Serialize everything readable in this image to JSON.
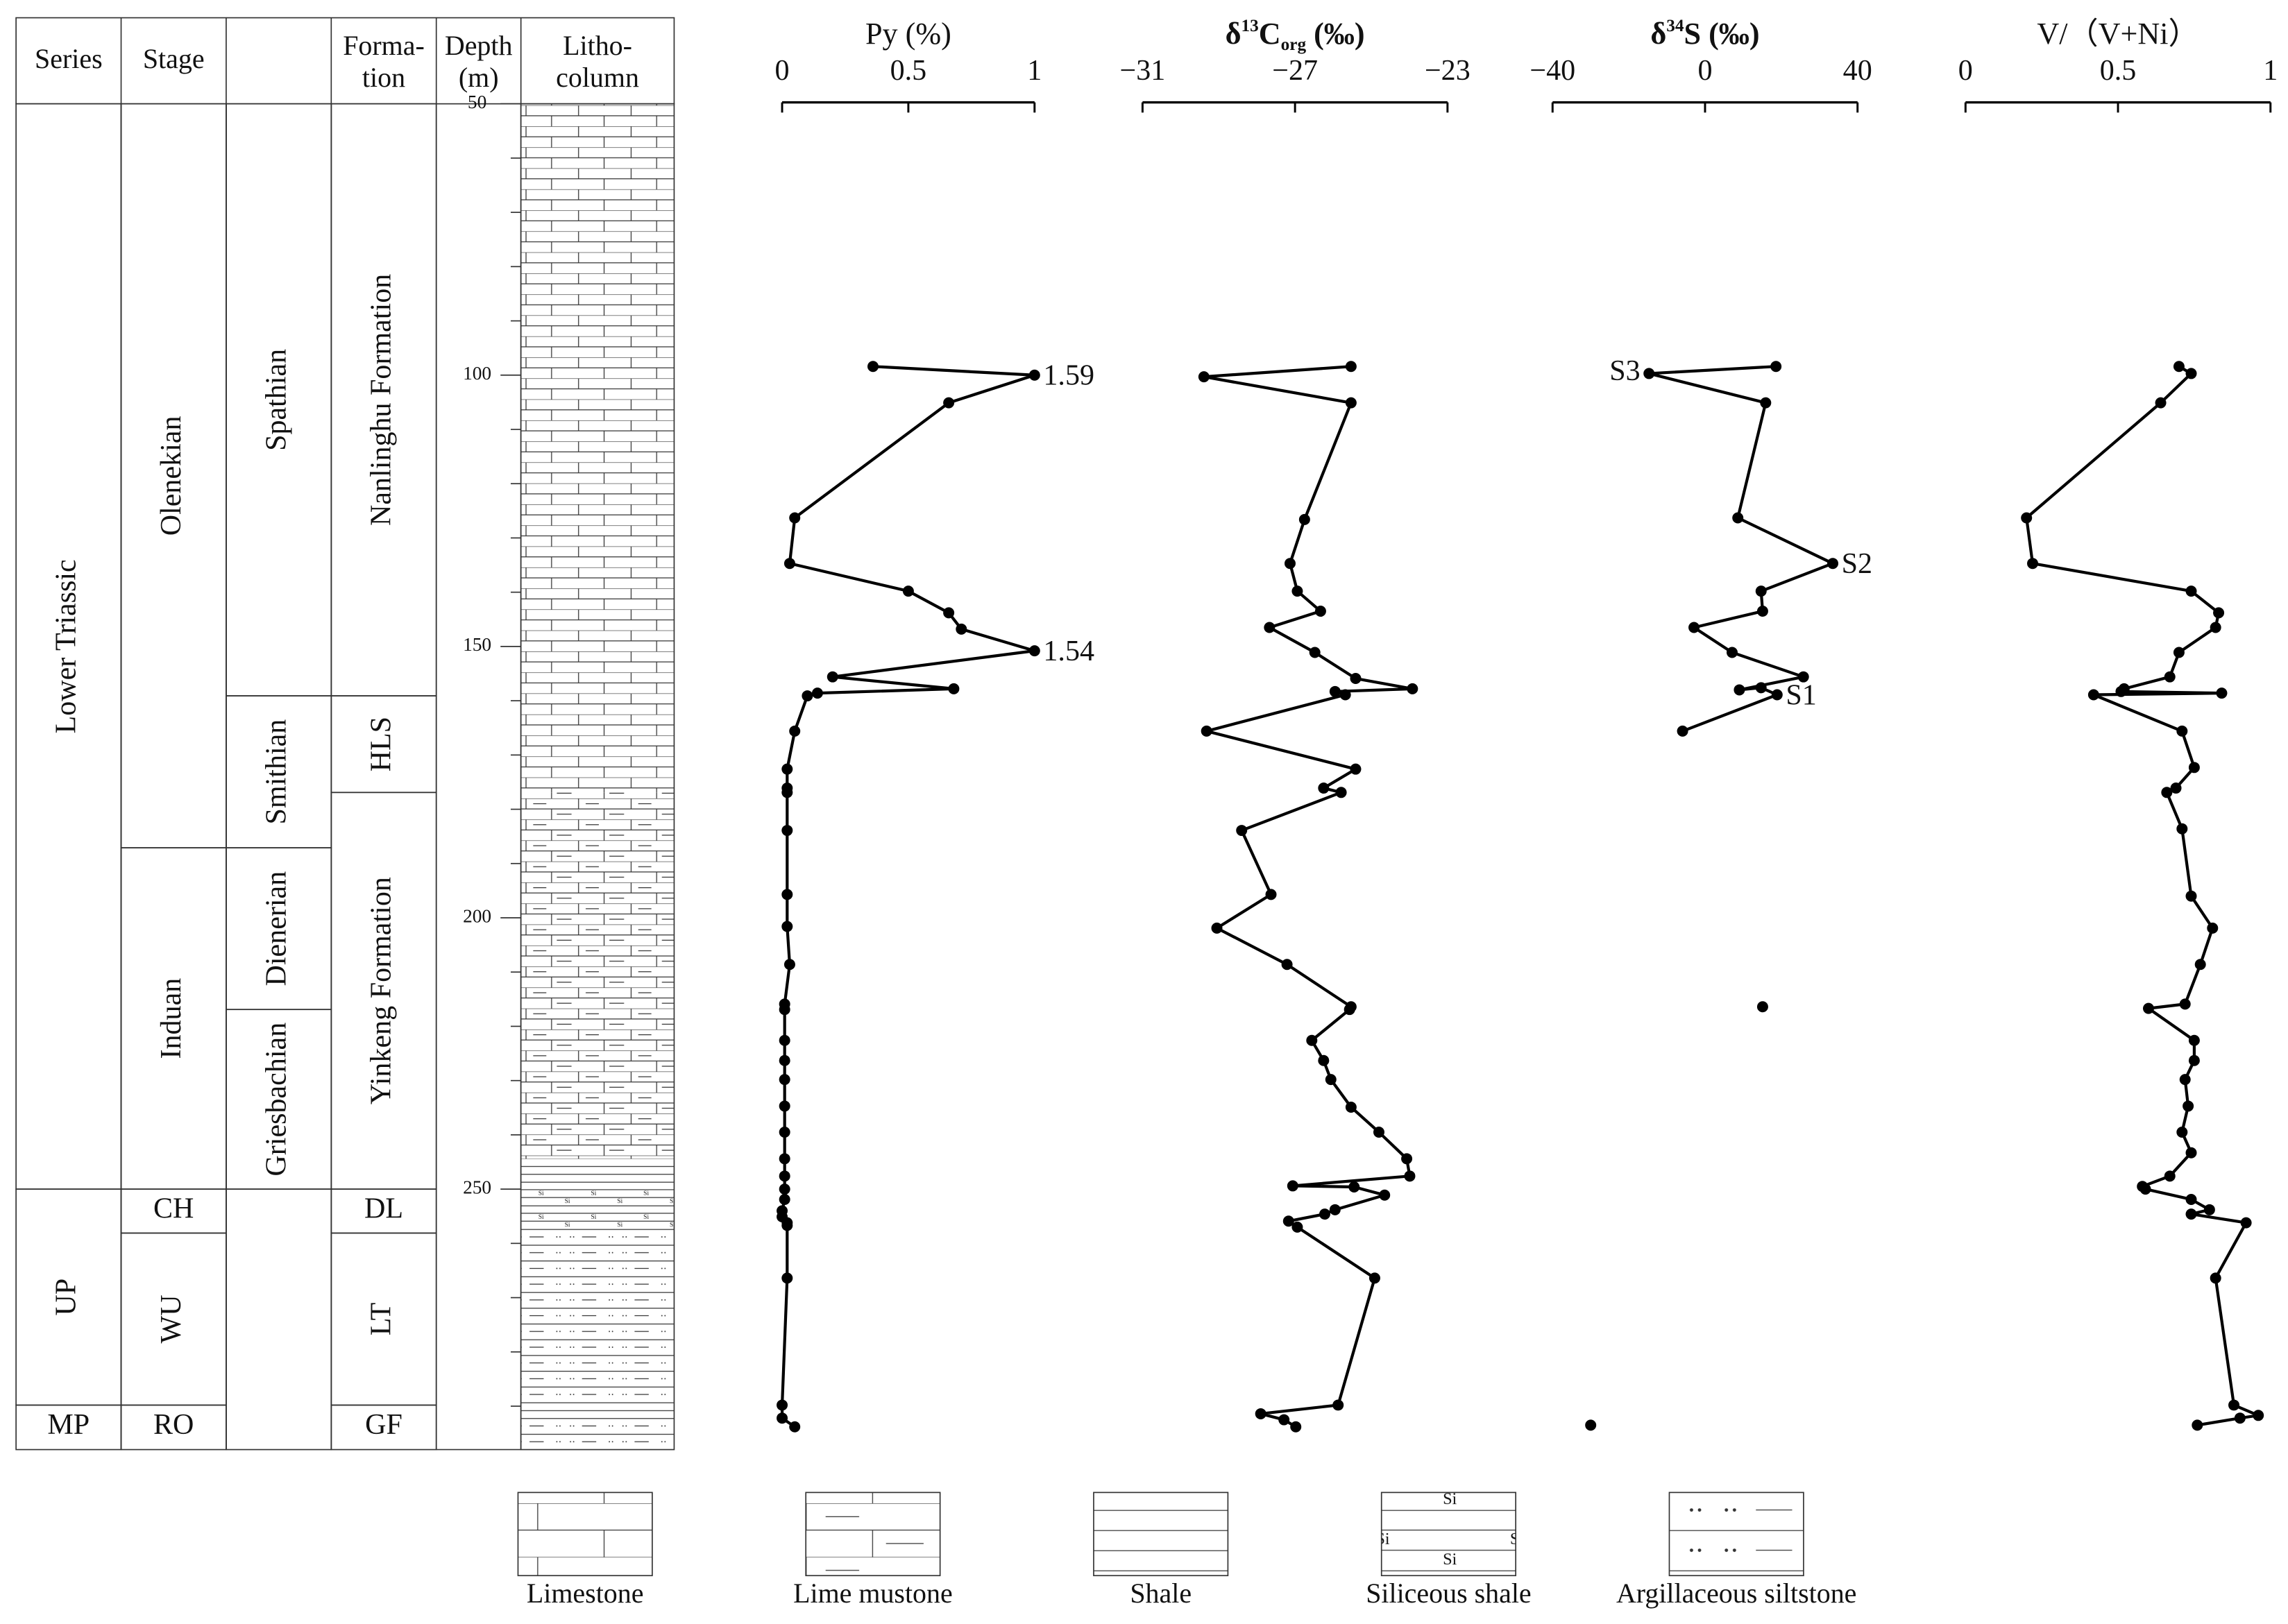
{
  "strat_column": {
    "headers": {
      "series": "Series",
      "stage": "Stage",
      "formation": [
        "Forma-",
        "tion"
      ],
      "depth": [
        "Depth",
        "(m)"
      ],
      "litho": [
        "Litho-",
        "column"
      ]
    },
    "depth_axis": {
      "ylim": [
        50,
        298
      ],
      "yticks": [
        50,
        100,
        150,
        200,
        250
      ],
      "minor_ticks": [
        60,
        70,
        80,
        90,
        110,
        120,
        130,
        140,
        160,
        170,
        180,
        190,
        210,
        220,
        230,
        240,
        260,
        270,
        280,
        290
      ]
    },
    "units": {
      "series": [
        {
          "label": "Lower Triassic",
          "to": 250
        },
        {
          "label": "UP",
          "to": 289.8
        },
        {
          "label": "MP",
          "to": 298
        }
      ],
      "stage": [
        {
          "label": "Olenekian",
          "to": 187.1
        },
        {
          "label": "Induan",
          "to": 250
        },
        {
          "label": "CH",
          "to": 258.1
        },
        {
          "label": "WU",
          "to": 289.8
        },
        {
          "label": "RO",
          "to": 298
        }
      ],
      "substage": [
        {
          "label": "Spathian",
          "to": 159.1
        },
        {
          "label": "Smithian",
          "to": 187.1
        },
        {
          "label": "Dienerian",
          "to": 216.9
        },
        {
          "label": "Griesbachian",
          "to": 250
        },
        {
          "label": null,
          "to": 298
        }
      ],
      "formation": [
        {
          "label": "Nanlinghu Formation",
          "to": 159.1
        },
        {
          "label": "HLS",
          "to": 176.9
        },
        {
          "label": "Yinkeng Formation",
          "to": 250
        },
        {
          "label": "DL",
          "to": 258.1
        },
        {
          "label": "LT",
          "to": 289.8
        },
        {
          "label": "GF",
          "to": 298
        }
      ]
    },
    "lithology": [
      {
        "legend": 0,
        "to": 176.9
      },
      {
        "legend": 1,
        "to": 244.4
      },
      {
        "legend": 2,
        "to": 250
      },
      {
        "legend": 3,
        "to": 258.1
      },
      {
        "legend": 4,
        "to": 290
      },
      {
        "legend": 2,
        "to": 292.5
      },
      {
        "legend": 4,
        "to": 298
      }
    ]
  },
  "si_symbol": "Si",
  "legend": [
    "Limestone",
    "Lime mustone",
    "Shale",
    "Siliceous shale",
    "Argillaceous siltstone"
  ],
  "chart_data": [
    {
      "type": "line",
      "title": "Py (%)",
      "xlim": [
        0,
        1
      ],
      "xticks": [
        0,
        0.5,
        1
      ],
      "color": "#000000",
      "markers": true,
      "y": [
        98.4,
        100,
        105.1,
        126.3,
        134.7,
        139.8,
        143.8,
        146.8,
        150.8,
        155.6,
        157.8,
        158.6,
        159.1,
        165.6,
        172.6,
        176.1,
        176.9,
        183.9,
        195.7,
        201.6,
        208.6,
        215.9,
        216.9,
        222.6,
        226.3,
        229.8,
        234.7,
        239.5,
        244.4,
        247.6,
        250,
        251.9,
        254,
        255.1,
        256.2,
        256.7,
        266.4,
        289.8,
        292.2,
        293.8
      ],
      "values": [
        0.36,
        1,
        0.66,
        0.05,
        0.03,
        0.5,
        0.66,
        0.71,
        1,
        0.2,
        0.68,
        0.14,
        0.1,
        0.05,
        0.02,
        0.02,
        0.02,
        0.02,
        0.02,
        0.02,
        0.03,
        0.01,
        0.01,
        0.01,
        0.01,
        0.01,
        0.01,
        0.01,
        0.01,
        0.01,
        0.01,
        0.01,
        0,
        0,
        0.02,
        0.02,
        0.02,
        0,
        0,
        0.05
      ],
      "annotations": [
        {
          "text": "1.59",
          "index": 1
        },
        {
          "text": "1.54",
          "index": 8
        }
      ]
    },
    {
      "type": "line",
      "title": {
        "prefix": "δ",
        "sup": "13",
        "main": "C",
        "sub": "org",
        "suffix": " (‰)"
      },
      "xlim": [
        -31,
        -23
      ],
      "xticks": [
        {
          "value": -31,
          "label": "−31"
        },
        {
          "value": -27,
          "label": "−27"
        },
        {
          "value": -23,
          "label": "−23"
        }
      ],
      "color": "#000000",
      "markers": true,
      "y": [
        98.4,
        100.3,
        105.1,
        126.6,
        134.7,
        139.8,
        143.5,
        146.5,
        151.1,
        155.9,
        157.8,
        158.3,
        158.9,
        165.6,
        172.6,
        176.1,
        176.9,
        183.9,
        195.7,
        201.9,
        208.6,
        216.4,
        216.9,
        222.6,
        226.3,
        229.8,
        234.9,
        239.5,
        244.4,
        247.6,
        249.4,
        249.6,
        251.1,
        253.8,
        254.6,
        255.9,
        257,
        266.4,
        289.8,
        291.4,
        292.5,
        293.8
      ],
      "values": [
        -25.53,
        -29.39,
        -25.53,
        -26.75,
        -27.13,
        -26.94,
        -26.33,
        -27.67,
        -26.48,
        -25.41,
        -23.92,
        -25.95,
        -25.68,
        -29.32,
        -25.41,
        -26.25,
        -25.79,
        -28.4,
        -27.63,
        -29.05,
        -27.21,
        -25.53,
        -25.57,
        -26.56,
        -26.25,
        -26.06,
        -25.53,
        -24.8,
        -24.07,
        -23.99,
        -27.06,
        -25.45,
        -24.65,
        -25.95,
        -26.22,
        -27.17,
        -26.94,
        -24.91,
        -25.87,
        -27.9,
        -27.29,
        -26.98
      ]
    },
    {
      "type": "line",
      "title": {
        "prefix": "δ",
        "sup": "34",
        "main": "S (‰)"
      },
      "xlim": [
        -40,
        40
      ],
      "xticks": [
        {
          "value": -40,
          "label": "−40"
        },
        0,
        40
      ],
      "color": "#000000",
      "markers": true,
      "y": [
        98.4,
        99.7,
        105.1,
        126.3,
        134.7,
        139.8,
        143.5,
        146.5,
        151.1,
        155.6,
        158.0,
        157.6,
        158.9,
        165.6,
        null,
        216.4,
        null,
        293.5
      ],
      "values": [
        18.6,
        -14.7,
        15.9,
        8.6,
        33.5,
        14.7,
        15.1,
        -2.9,
        7.1,
        25.8,
        9.0,
        14.7,
        18.9,
        -5.9,
        null,
        15.1,
        null,
        -30
      ],
      "annotations": [
        {
          "text": "S3",
          "index": 1
        },
        {
          "text": "S2",
          "index": 4
        },
        {
          "text": "S1",
          "index": 12
        }
      ]
    },
    {
      "type": "line",
      "title": "V/（V+Ni）",
      "xlim": [
        0,
        1
      ],
      "xticks": [
        0,
        0.5,
        1
      ],
      "color": "#000000",
      "markers": true,
      "y": [
        98.4,
        99.7,
        105.1,
        126.3,
        134.7,
        139.8,
        143.8,
        146.5,
        151.1,
        155.6,
        157.8,
        158.3,
        158.6,
        158.9,
        165.6,
        172.3,
        176.1,
        176.9,
        183.6,
        196,
        201.9,
        208.6,
        215.9,
        216.7,
        222.6,
        226.3,
        229.8,
        234.7,
        239.5,
        243.3,
        247.6,
        249.5,
        250,
        251.9,
        253.8,
        254.6,
        256.2,
        266.4,
        289.8,
        291.7,
        292.2,
        293.5
      ],
      "values": [
        0.7,
        0.74,
        0.64,
        0.2,
        0.22,
        0.74,
        0.83,
        0.82,
        0.7,
        0.67,
        0.52,
        0.51,
        0.84,
        0.42,
        0.71,
        0.75,
        0.69,
        0.66,
        0.71,
        0.74,
        0.81,
        0.77,
        0.72,
        0.6,
        0.75,
        0.75,
        0.72,
        0.73,
        0.71,
        0.74,
        0.67,
        0.58,
        0.59,
        0.74,
        0.8,
        0.74,
        0.92,
        0.82,
        0.88,
        0.96,
        0.9,
        0.76
      ]
    }
  ]
}
